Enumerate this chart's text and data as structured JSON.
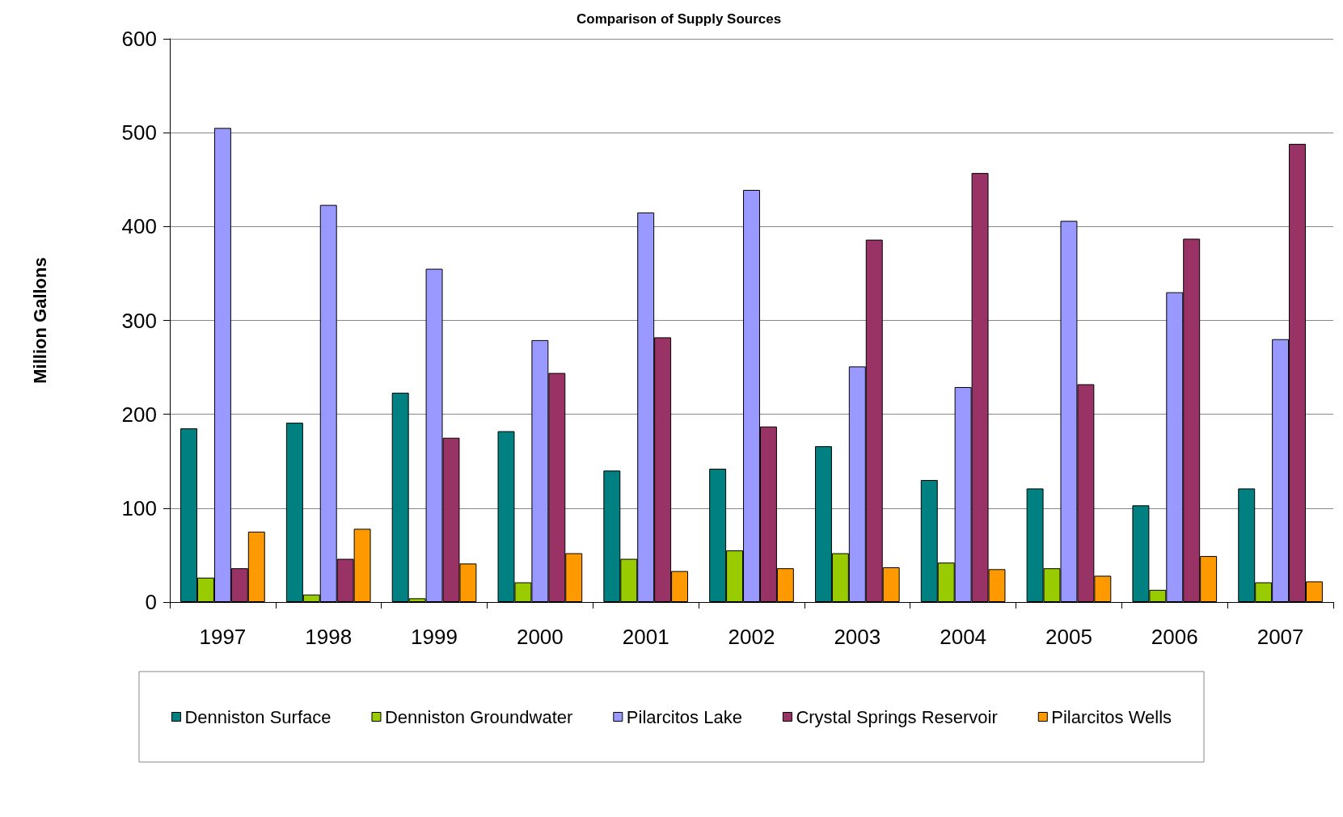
{
  "chart_data": {
    "type": "bar",
    "title": "Comparison of Supply Sources",
    "ylabel": "Million Gallons",
    "categories": [
      "1997",
      "1998",
      "1999",
      "2000",
      "2001",
      "2002",
      "2003",
      "2004",
      "2005",
      "2006",
      "2007"
    ],
    "series": [
      {
        "name": "Denniston Surface",
        "color": "#008080",
        "values": [
          185,
          191,
          223,
          182,
          140,
          142,
          166,
          130,
          121,
          103,
          121
        ]
      },
      {
        "name": "Denniston Groundwater",
        "color": "#99cc00",
        "values": [
          26,
          8,
          4,
          21,
          46,
          55,
          52,
          42,
          36,
          13,
          21
        ]
      },
      {
        "name": "Pilarcitos Lake",
        "color": "#9999ff",
        "values": [
          505,
          423,
          355,
          279,
          415,
          439,
          251,
          229,
          406,
          330,
          280
        ]
      },
      {
        "name": "Crystal Springs Reservoir",
        "color": "#993366",
        "values": [
          36,
          46,
          175,
          244,
          282,
          187,
          386,
          457,
          232,
          387,
          488
        ]
      },
      {
        "name": "Pilarcitos Wells",
        "color": "#ff9900",
        "values": [
          75,
          78,
          41,
          52,
          33,
          36,
          37,
          35,
          28,
          49,
          22
        ]
      }
    ],
    "ylim": [
      0,
      600
    ],
    "yticks": [
      0,
      100,
      200,
      300,
      400,
      500,
      600
    ],
    "grid": "y",
    "legend": "bottom"
  }
}
